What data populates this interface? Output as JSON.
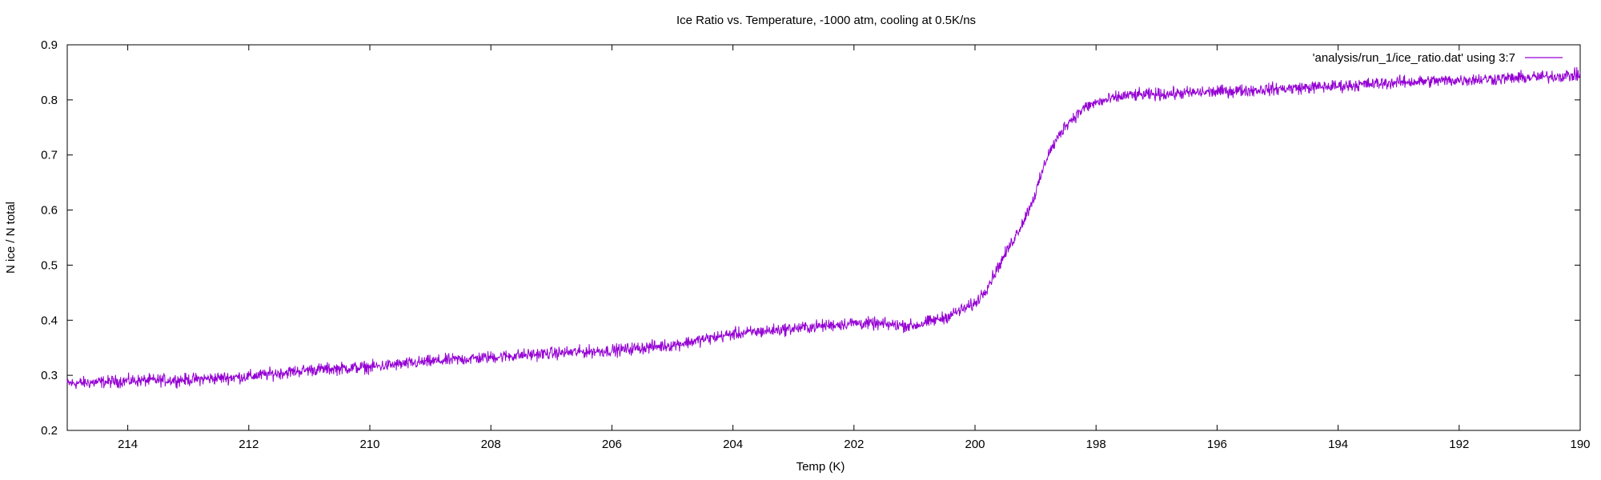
{
  "chart_data": {
    "type": "line",
    "title": "Ice Ratio vs. Temperature, -1000 atm, cooling at 0.5K/ns",
    "xlabel": "Temp (K)",
    "ylabel": "N ice / N total",
    "xlim": [
      215,
      190
    ],
    "ylim": [
      0.2,
      0.9
    ],
    "x_ticks": [
      "214",
      "212",
      "210",
      "208",
      "206",
      "204",
      "202",
      "200",
      "198",
      "196",
      "194",
      "192",
      "190"
    ],
    "y_ticks": [
      "0.2",
      "0.3",
      "0.4",
      "0.5",
      "0.6",
      "0.7",
      "0.8",
      "0.9"
    ],
    "x_reversed": true,
    "grid": false,
    "legend_position": "top-right",
    "series": [
      {
        "name": "'analysis/run_1/ice_ratio.dat' using 3:7",
        "color": "#9400d3",
        "noise_amplitude": 0.012,
        "x": [
          215,
          214,
          213,
          212,
          211,
          210,
          209,
          208,
          207,
          206,
          205,
          204,
          203,
          202,
          201,
          200.5,
          200,
          199.8,
          199.5,
          199.2,
          199.0,
          198.8,
          198.5,
          198.2,
          198.0,
          197.5,
          197,
          196,
          195,
          194,
          193,
          192,
          191,
          190
        ],
        "y": [
          0.285,
          0.29,
          0.292,
          0.298,
          0.31,
          0.315,
          0.325,
          0.333,
          0.34,
          0.345,
          0.355,
          0.375,
          0.385,
          0.395,
          0.39,
          0.405,
          0.43,
          0.46,
          0.52,
          0.58,
          0.63,
          0.7,
          0.755,
          0.785,
          0.795,
          0.808,
          0.81,
          0.815,
          0.82,
          0.825,
          0.832,
          0.836,
          0.84,
          0.845
        ]
      }
    ]
  }
}
